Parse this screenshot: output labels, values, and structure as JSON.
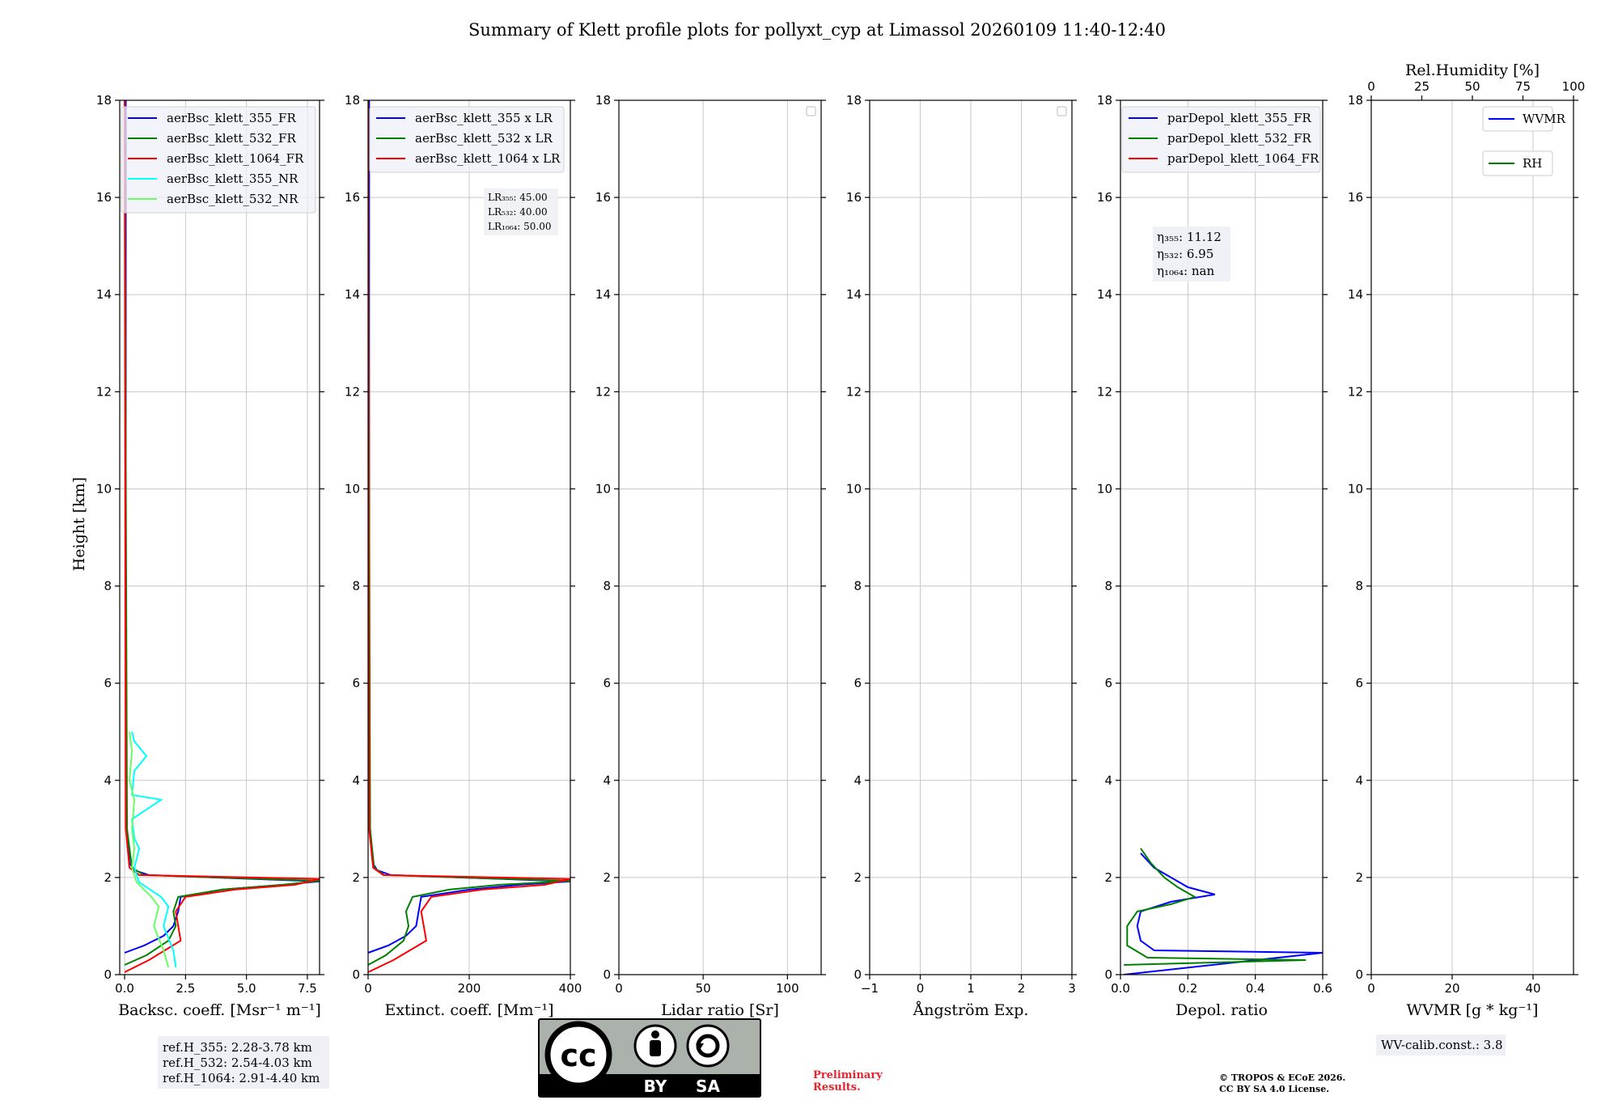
{
  "title": "Summary of Klett profile plots for pollyxt_cyp at Limassol 20260109 11:40-12:40",
  "y_axis_label": "Height [km]",
  "chart_data": [
    {
      "id": "backscatter",
      "type": "line",
      "xlabel": "Backsc. coeff. [Msr⁻¹ m⁻¹]",
      "ylabel": "Height [km]",
      "xlim": [
        -0.2,
        8.0
      ],
      "ylim": [
        0,
        18
      ],
      "xticks": [
        "0.0",
        "2.5",
        "5.0",
        "7.5"
      ],
      "xtick_values": [
        0,
        2.5,
        5.0,
        7.5
      ],
      "yticks": [
        "0",
        "2",
        "4",
        "6",
        "8",
        "10",
        "12",
        "14",
        "16",
        "18"
      ],
      "grid": true,
      "legend": [
        "aerBsc_klett_355_FR",
        "aerBsc_klett_532_FR",
        "aerBsc_klett_1064_FR",
        "aerBsc_klett_355_NR",
        "aerBsc_klett_532_NR"
      ],
      "legend_colors": [
        "#0000ff",
        "#008000",
        "#ff0000",
        "#00ffff",
        "#66ff66"
      ],
      "series": [
        {
          "name": "aerBsc_klett_355_FR",
          "color": "#0000ff",
          "points": [
            [
              0.0,
              0.45
            ],
            [
              0.8,
              0.6
            ],
            [
              1.6,
              0.8
            ],
            [
              2.0,
              1.0
            ],
            [
              2.2,
              1.3
            ],
            [
              2.3,
              1.6
            ],
            [
              4.0,
              1.75
            ],
            [
              6.5,
              1.85
            ],
            [
              8.0,
              1.92
            ],
            [
              1.0,
              2.05
            ],
            [
              0.4,
              2.15
            ],
            [
              0.2,
              2.3
            ],
            [
              0.1,
              3.0
            ],
            [
              0.05,
              5.0
            ],
            [
              0.05,
              18
            ]
          ]
        },
        {
          "name": "aerBsc_klett_532_FR",
          "color": "#008000",
          "points": [
            [
              0.0,
              0.2
            ],
            [
              0.9,
              0.4
            ],
            [
              1.8,
              0.7
            ],
            [
              2.1,
              1.0
            ],
            [
              2.0,
              1.3
            ],
            [
              2.2,
              1.6
            ],
            [
              4.0,
              1.75
            ],
            [
              6.5,
              1.85
            ],
            [
              8.0,
              1.93
            ],
            [
              0.8,
              2.05
            ],
            [
              0.3,
              2.2
            ],
            [
              0.1,
              3.0
            ],
            [
              0.0,
              18
            ]
          ]
        },
        {
          "name": "aerBsc_klett_1064_FR",
          "color": "#ff0000",
          "points": [
            [
              0.0,
              0.05
            ],
            [
              1.0,
              0.3
            ],
            [
              2.3,
              0.7
            ],
            [
              2.2,
              1.0
            ],
            [
              2.1,
              1.3
            ],
            [
              2.5,
              1.6
            ],
            [
              4.5,
              1.75
            ],
            [
              7.0,
              1.85
            ],
            [
              8.0,
              1.97
            ],
            [
              0.6,
              2.05
            ],
            [
              0.2,
              2.2
            ],
            [
              0.05,
              3.0
            ],
            [
              0.0,
              18
            ]
          ]
        },
        {
          "name": "aerBsc_klett_355_NR",
          "color": "#00ffff",
          "points": [
            [
              2.1,
              0.15
            ],
            [
              2.0,
              0.5
            ],
            [
              1.6,
              1.0
            ],
            [
              1.8,
              1.4
            ],
            [
              1.5,
              1.6
            ],
            [
              0.6,
              1.9
            ],
            [
              0.4,
              2.2
            ],
            [
              0.6,
              2.6
            ],
            [
              0.4,
              2.8
            ],
            [
              0.3,
              3.2
            ],
            [
              1.5,
              3.6
            ],
            [
              0.3,
              3.7
            ],
            [
              0.4,
              4.2
            ],
            [
              0.9,
              4.5
            ],
            [
              0.4,
              4.8
            ],
            [
              0.3,
              5.0
            ]
          ]
        },
        {
          "name": "aerBsc_klett_532_NR",
          "color": "#66ff66",
          "points": [
            [
              1.8,
              0.15
            ],
            [
              1.6,
              0.5
            ],
            [
              1.2,
              1.0
            ],
            [
              1.4,
              1.4
            ],
            [
              1.1,
              1.6
            ],
            [
              0.5,
              1.9
            ],
            [
              0.3,
              2.2
            ],
            [
              0.4,
              2.6
            ],
            [
              0.3,
              3.0
            ],
            [
              0.4,
              3.6
            ],
            [
              0.2,
              4.0
            ],
            [
              0.3,
              4.6
            ],
            [
              0.2,
              5.0
            ]
          ]
        }
      ],
      "annotation_lines": [
        "ref.H_355: 2.28-3.78 km",
        "ref.H_532: 2.54-4.03 km",
        "ref.H_1064: 2.91-4.40 km"
      ]
    },
    {
      "id": "extinction",
      "type": "line",
      "xlabel": "Extinct. coeff. [Mm⁻¹]",
      "xlim": [
        0,
        400
      ],
      "ylim": [
        0,
        18
      ],
      "xticks": [
        "0",
        "200",
        "400"
      ],
      "xtick_values": [
        0,
        200,
        400
      ],
      "yticks": [
        "0",
        "2",
        "4",
        "6",
        "8",
        "10",
        "12",
        "14",
        "16",
        "18"
      ],
      "grid": true,
      "legend": [
        "aerBsc_klett_355 x LR",
        "aerBsc_klett_532 x LR",
        "aerBsc_klett_1064 x LR"
      ],
      "legend_colors": [
        "#0000ff",
        "#008000",
        "#ff0000"
      ],
      "series": [
        {
          "name": "aerBsc_klett_355 x LR",
          "color": "#0000ff",
          "points": [
            [
              0,
              0.45
            ],
            [
              40,
              0.6
            ],
            [
              75,
              0.8
            ],
            [
              95,
              1.0
            ],
            [
              100,
              1.3
            ],
            [
              105,
              1.6
            ],
            [
              200,
              1.75
            ],
            [
              300,
              1.85
            ],
            [
              400,
              1.92
            ],
            [
              45,
              2.05
            ],
            [
              18,
              2.15
            ],
            [
              9,
              2.3
            ],
            [
              4,
              3.0
            ],
            [
              2,
              5.0
            ],
            [
              2,
              18
            ]
          ]
        },
        {
          "name": "aerBsc_klett_532 x LR",
          "color": "#008000",
          "points": [
            [
              0,
              0.2
            ],
            [
              35,
              0.4
            ],
            [
              70,
              0.7
            ],
            [
              80,
              1.0
            ],
            [
              75,
              1.3
            ],
            [
              88,
              1.6
            ],
            [
              160,
              1.75
            ],
            [
              260,
              1.85
            ],
            [
              400,
              1.93
            ],
            [
              32,
              2.05
            ],
            [
              12,
              2.2
            ],
            [
              4,
              3.0
            ],
            [
              0,
              18
            ]
          ]
        },
        {
          "name": "aerBsc_klett_1064 x LR",
          "color": "#ff0000",
          "points": [
            [
              0,
              0.05
            ],
            [
              50,
              0.3
            ],
            [
              115,
              0.7
            ],
            [
              110,
              1.0
            ],
            [
              105,
              1.3
            ],
            [
              125,
              1.6
            ],
            [
              225,
              1.75
            ],
            [
              350,
              1.85
            ],
            [
              400,
              1.97
            ],
            [
              30,
              2.05
            ],
            [
              10,
              2.2
            ],
            [
              2,
              3.0
            ],
            [
              0,
              18
            ]
          ]
        }
      ],
      "lr_lines": [
        "LR₃₅₅: 45.00",
        "LR₅₃₂: 40.00",
        "LR₁₀₆₄: 50.00"
      ]
    },
    {
      "id": "lidar_ratio",
      "type": "line",
      "xlabel": "Lidar ratio [Sr]",
      "xlim": [
        0,
        120
      ],
      "ylim": [
        0,
        18
      ],
      "xticks": [
        "0",
        "50",
        "100"
      ],
      "xtick_values": [
        0,
        50,
        100
      ],
      "yticks": [
        "0",
        "2",
        "4",
        "6",
        "8",
        "10",
        "12",
        "14",
        "16",
        "18"
      ],
      "grid": true,
      "series": []
    },
    {
      "id": "angstrom",
      "type": "line",
      "xlabel": "Ångström Exp.",
      "xlim": [
        -1,
        3
      ],
      "ylim": [
        0,
        18
      ],
      "xticks": [
        "−1",
        "0",
        "1",
        "2",
        "3"
      ],
      "xtick_values": [
        -1,
        0,
        1,
        2,
        3
      ],
      "yticks": [
        "0",
        "2",
        "4",
        "6",
        "8",
        "10",
        "12",
        "14",
        "16",
        "18"
      ],
      "grid": true,
      "series": []
    },
    {
      "id": "depol",
      "type": "line",
      "xlabel": "Depol. ratio",
      "xlim": [
        0,
        0.6
      ],
      "ylim": [
        0,
        18
      ],
      "xticks": [
        "0.0",
        "0.2",
        "0.4",
        "0.6"
      ],
      "xtick_values": [
        0,
        0.2,
        0.4,
        0.6
      ],
      "yticks": [
        "0",
        "2",
        "4",
        "6",
        "8",
        "10",
        "12",
        "14",
        "16",
        "18"
      ],
      "grid": true,
      "legend": [
        "parDepol_klett_355_FR",
        "parDepol_klett_532_FR",
        "parDepol_klett_1064_FR"
      ],
      "legend_colors": [
        "#0000ff",
        "#008000",
        "#ff0000"
      ],
      "series": [
        {
          "name": "parDepol_klett_355_FR",
          "color": "#0000ff",
          "points": [
            [
              0.01,
              0.0
            ],
            [
              0.6,
              0.45
            ],
            [
              0.1,
              0.5
            ],
            [
              0.06,
              0.7
            ],
            [
              0.05,
              1.0
            ],
            [
              0.06,
              1.3
            ],
            [
              0.15,
              1.5
            ],
            [
              0.28,
              1.65
            ],
            [
              0.2,
              1.8
            ],
            [
              0.15,
              2.0
            ],
            [
              0.1,
              2.2
            ],
            [
              0.06,
              2.5
            ]
          ]
        },
        {
          "name": "parDepol_klett_532_FR",
          "color": "#008000",
          "points": [
            [
              0.01,
              0.2
            ],
            [
              0.55,
              0.3
            ],
            [
              0.08,
              0.35
            ],
            [
              0.02,
              0.6
            ],
            [
              0.02,
              1.0
            ],
            [
              0.05,
              1.3
            ],
            [
              0.15,
              1.45
            ],
            [
              0.22,
              1.6
            ],
            [
              0.17,
              1.8
            ],
            [
              0.13,
              2.0
            ],
            [
              0.09,
              2.3
            ],
            [
              0.06,
              2.6
            ]
          ]
        }
      ],
      "eta_lines": [
        "η₃₅₅: 11.12",
        "η₅₃₂: 6.95",
        "η₁₀₆₄: nan"
      ]
    },
    {
      "id": "wvmr",
      "type": "line",
      "xlabel": "WVMR [g * kg⁻¹]",
      "xlim": [
        0,
        50
      ],
      "ylim": [
        0,
        18
      ],
      "xticks": [
        "0",
        "20",
        "40"
      ],
      "xtick_values": [
        0,
        20,
        40
      ],
      "yticks": [
        "0",
        "2",
        "4",
        "6",
        "8",
        "10",
        "12",
        "14",
        "16",
        "18"
      ],
      "grid": true,
      "top_xlabel": "Rel.Humidity [%]",
      "top_xticks": [
        "0",
        "25",
        "50",
        "75",
        "100"
      ],
      "top_xtick_values": [
        0,
        25,
        50,
        75,
        100
      ],
      "legend": [
        "WVMR",
        "RH"
      ],
      "legend_colors": [
        "#0000ff",
        "#008000"
      ],
      "series": [],
      "calib_text": "WV-calib.const.: 3.8"
    }
  ],
  "license_badge": {
    "left": "BY",
    "right": "SA",
    "center": "cc"
  },
  "preliminary": [
    "Preliminary",
    "Results."
  ],
  "copyright": [
    "© TROPOS & ECoE 2026.",
    "CC BY SA 4.0 License."
  ]
}
